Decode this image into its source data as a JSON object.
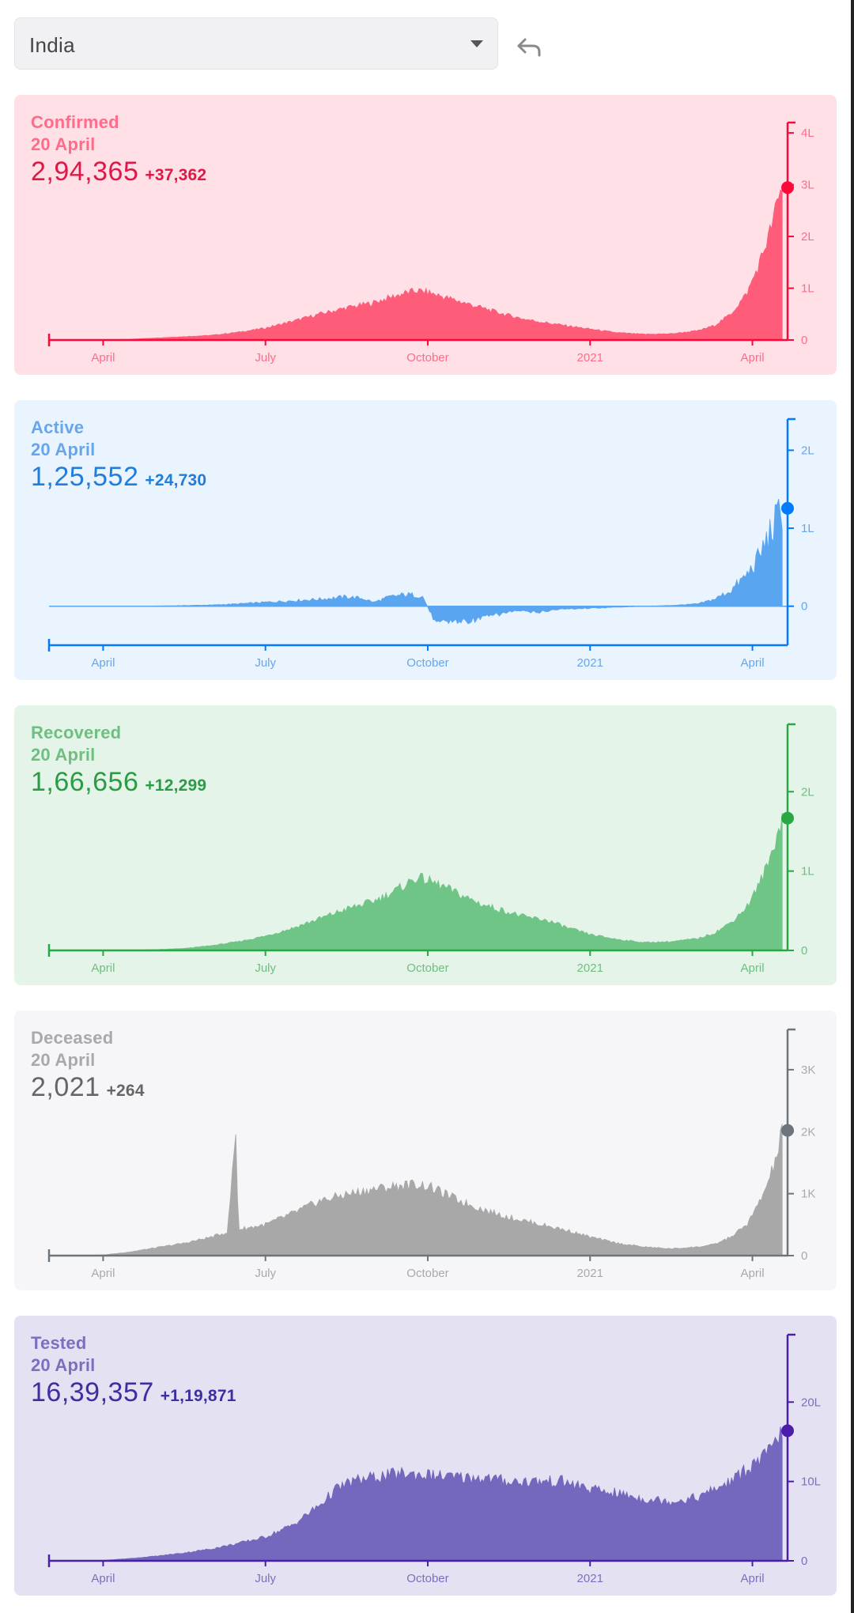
{
  "header": {
    "region_select": {
      "value": "India"
    },
    "undo_icon": "undo-arrow-icon"
  },
  "colors": {
    "confirmed": {
      "fg": "#ff073a",
      "bg": "#ffe0e6",
      "fill": "#ff5c7a",
      "text": "#ff6c8a",
      "total": "#e01845"
    },
    "active": {
      "fg": "#007bff",
      "bg": "#eaf4ff",
      "fill": "#5aa5f0",
      "text": "#66a6ec",
      "total": "#1f7ddc"
    },
    "recovered": {
      "fg": "#28a745",
      "bg": "#e4f4e8",
      "fill": "#6fc586",
      "text": "#6ebf80",
      "total": "#2a9c46"
    },
    "deceased": {
      "fg": "#6c757d",
      "bg": "#f6f6f9",
      "fill": "#a8a8a8",
      "text": "#a9a9a9",
      "total": "#666666"
    },
    "tested": {
      "fg": "#4b1eaa",
      "bg": "#e4e2f2",
      "fill": "#7367be",
      "text": "#7a6fc0",
      "total": "#3d2fa0"
    }
  },
  "cards": [
    {
      "key": "confirmed",
      "label": "Confirmed",
      "date": "20 April",
      "total": "2,94,365",
      "delta": "+37,362"
    },
    {
      "key": "active",
      "label": "Active",
      "date": "20 April",
      "total": "1,25,552",
      "delta": "+24,730"
    },
    {
      "key": "recovered",
      "label": "Recovered",
      "date": "20 April",
      "total": "1,66,656",
      "delta": "+12,299"
    },
    {
      "key": "deceased",
      "label": "Deceased",
      "date": "20 April",
      "total": "2,021",
      "delta": "+264"
    },
    {
      "key": "tested",
      "label": "Tested",
      "date": "20 April",
      "total": "16,39,357",
      "delta": "+1,19,871"
    }
  ],
  "chart_data": [
    {
      "type": "area",
      "title": "Confirmed",
      "x_labels": [
        "April",
        "July",
        "October",
        "2021",
        "April"
      ],
      "x_label_months": [
        1,
        4,
        7,
        10,
        13
      ],
      "x_range_months": [
        0,
        13.65
      ],
      "y_ticks": [
        0,
        100000,
        200000,
        300000,
        400000
      ],
      "y_tick_labels": [
        "0",
        "1L",
        "2L",
        "3L",
        "4L"
      ],
      "ylim": [
        0,
        420000
      ],
      "latest": 294365,
      "series": [
        [
          0,
          0
        ],
        [
          0.8,
          0
        ],
        [
          1,
          200
        ],
        [
          1.5,
          1500
        ],
        [
          2,
          4000
        ],
        [
          2.5,
          6500
        ],
        [
          3,
          9000
        ],
        [
          3.5,
          15000
        ],
        [
          4,
          23000
        ],
        [
          4.5,
          36000
        ],
        [
          5,
          50000
        ],
        [
          5.5,
          62000
        ],
        [
          6,
          72000
        ],
        [
          6.3,
          82000
        ],
        [
          6.6,
          91000
        ],
        [
          6.8,
          95000
        ],
        [
          7,
          92000
        ],
        [
          7.3,
          83000
        ],
        [
          7.6,
          74000
        ],
        [
          8,
          62000
        ],
        [
          8.4,
          50000
        ],
        [
          8.8,
          40000
        ],
        [
          9.2,
          33000
        ],
        [
          9.6,
          27000
        ],
        [
          10,
          21000
        ],
        [
          10.5,
          14000
        ],
        [
          11,
          11000
        ],
        [
          11.5,
          12000
        ],
        [
          12,
          18000
        ],
        [
          12.3,
          28000
        ],
        [
          12.6,
          50000
        ],
        [
          12.9,
          90000
        ],
        [
          13.1,
          140000
        ],
        [
          13.3,
          200000
        ],
        [
          13.45,
          260000
        ],
        [
          13.55,
          294365
        ]
      ]
    },
    {
      "type": "area",
      "title": "Active",
      "x_labels": [
        "April",
        "July",
        "October",
        "2021",
        "April"
      ],
      "x_label_months": [
        1,
        4,
        7,
        10,
        13
      ],
      "x_range_months": [
        0,
        13.65
      ],
      "y_ticks": [
        0,
        100000,
        200000
      ],
      "y_tick_labels": [
        "0",
        "1L",
        "2L"
      ],
      "ylim": [
        -50000,
        240000
      ],
      "latest": 125552,
      "series": [
        [
          0,
          0
        ],
        [
          2,
          300
        ],
        [
          3,
          1500
        ],
        [
          3.5,
          3000
        ],
        [
          4,
          5000
        ],
        [
          4.5,
          7000
        ],
        [
          5,
          9000
        ],
        [
          5.5,
          12000
        ],
        [
          5.8,
          10000
        ],
        [
          6,
          5000
        ],
        [
          6.3,
          12000
        ],
        [
          6.6,
          15000
        ],
        [
          6.9,
          13000
        ],
        [
          7.1,
          -15000
        ],
        [
          7.4,
          -20000
        ],
        [
          7.8,
          -18000
        ],
        [
          8.2,
          -12000
        ],
        [
          8.6,
          -6000
        ],
        [
          9,
          -8000
        ],
        [
          9.4,
          -4000
        ],
        [
          9.8,
          -3000
        ],
        [
          10.2,
          -2000
        ],
        [
          10.6,
          -1000
        ],
        [
          11,
          0
        ],
        [
          11.5,
          1000
        ],
        [
          12,
          3000
        ],
        [
          12.3,
          9000
        ],
        [
          12.6,
          20000
        ],
        [
          12.9,
          40000
        ],
        [
          13.1,
          60000
        ],
        [
          13.3,
          90000
        ],
        [
          13.45,
          110000
        ],
        [
          13.55,
          125552
        ]
      ]
    },
    {
      "type": "area",
      "title": "Recovered",
      "x_labels": [
        "April",
        "July",
        "October",
        "2021",
        "April"
      ],
      "x_label_months": [
        1,
        4,
        7,
        10,
        13
      ],
      "x_range_months": [
        0,
        13.65
      ],
      "y_ticks": [
        0,
        100000,
        200000
      ],
      "y_tick_labels": [
        "0",
        "1L",
        "2L"
      ],
      "ylim": [
        0,
        285000
      ],
      "latest": 166656,
      "series": [
        [
          0,
          0
        ],
        [
          1.5,
          300
        ],
        [
          2,
          1000
        ],
        [
          2.5,
          2500
        ],
        [
          3,
          6000
        ],
        [
          3.5,
          11000
        ],
        [
          4,
          18000
        ],
        [
          4.5,
          28000
        ],
        [
          5,
          40000
        ],
        [
          5.5,
          52000
        ],
        [
          6,
          62000
        ],
        [
          6.4,
          75000
        ],
        [
          6.8,
          92000
        ],
        [
          7,
          88000
        ],
        [
          7.3,
          80000
        ],
        [
          7.6,
          70000
        ],
        [
          8,
          58000
        ],
        [
          8.4,
          50000
        ],
        [
          8.8,
          42000
        ],
        [
          9.2,
          38000
        ],
        [
          9.6,
          28000
        ],
        [
          10,
          20000
        ],
        [
          10.5,
          14000
        ],
        [
          11,
          10000
        ],
        [
          11.5,
          11000
        ],
        [
          12,
          15000
        ],
        [
          12.3,
          22000
        ],
        [
          12.6,
          35000
        ],
        [
          12.9,
          55000
        ],
        [
          13.1,
          80000
        ],
        [
          13.3,
          110000
        ],
        [
          13.45,
          145000
        ],
        [
          13.55,
          166656
        ]
      ]
    },
    {
      "type": "area",
      "title": "Deceased",
      "x_labels": [
        "April",
        "July",
        "October",
        "2021",
        "April"
      ],
      "x_label_months": [
        1,
        4,
        7,
        10,
        13
      ],
      "x_range_months": [
        0,
        13.65
      ],
      "y_ticks": [
        0,
        1000,
        2000,
        3000
      ],
      "y_tick_labels": [
        "0",
        "1K",
        "2K",
        "3K"
      ],
      "ylim": [
        0,
        3650
      ],
      "latest": 2021,
      "series": [
        [
          0,
          0
        ],
        [
          1,
          10
        ],
        [
          1.5,
          60
        ],
        [
          2,
          130
        ],
        [
          2.5,
          200
        ],
        [
          3,
          300
        ],
        [
          3.3,
          380
        ],
        [
          3.45,
          2000
        ],
        [
          3.5,
          420
        ],
        [
          4,
          500
        ],
        [
          4.5,
          680
        ],
        [
          5,
          880
        ],
        [
          5.5,
          990
        ],
        [
          6,
          1070
        ],
        [
          6.5,
          1130
        ],
        [
          6.8,
          1150
        ],
        [
          7,
          1120
        ],
        [
          7.3,
          1000
        ],
        [
          7.6,
          880
        ],
        [
          8,
          750
        ],
        [
          8.4,
          640
        ],
        [
          8.8,
          560
        ],
        [
          9.2,
          480
        ],
        [
          9.6,
          400
        ],
        [
          10,
          300
        ],
        [
          10.5,
          200
        ],
        [
          11,
          140
        ],
        [
          11.5,
          110
        ],
        [
          12,
          140
        ],
        [
          12.3,
          180
        ],
        [
          12.6,
          300
        ],
        [
          12.9,
          500
        ],
        [
          13.1,
          800
        ],
        [
          13.3,
          1200
        ],
        [
          13.45,
          1600
        ],
        [
          13.55,
          2021
        ]
      ]
    },
    {
      "type": "area",
      "title": "Tested",
      "x_labels": [
        "April",
        "July",
        "October",
        "2021",
        "April"
      ],
      "x_label_months": [
        1,
        4,
        7,
        10,
        13
      ],
      "x_range_months": [
        0,
        13.65
      ],
      "y_ticks": [
        0,
        1000000,
        2000000
      ],
      "y_tick_labels": [
        "0",
        "10L",
        "20L"
      ],
      "ylim": [
        0,
        2850000
      ],
      "latest": 1639357,
      "series": [
        [
          0,
          0
        ],
        [
          1,
          5000
        ],
        [
          1.5,
          30000
        ],
        [
          2,
          60000
        ],
        [
          2.5,
          100000
        ],
        [
          3,
          150000
        ],
        [
          3.5,
          220000
        ],
        [
          4,
          300000
        ],
        [
          4.5,
          450000
        ],
        [
          5,
          700000
        ],
        [
          5.3,
          900000
        ],
        [
          5.6,
          1000000
        ],
        [
          6,
          1050000
        ],
        [
          6.5,
          1100000
        ],
        [
          7,
          1080000
        ],
        [
          7.5,
          1050000
        ],
        [
          8,
          1050000
        ],
        [
          8.5,
          1000000
        ],
        [
          9,
          1000000
        ],
        [
          9.5,
          1000000
        ],
        [
          10,
          900000
        ],
        [
          10.5,
          850000
        ],
        [
          11,
          780000
        ],
        [
          11.5,
          750000
        ],
        [
          12,
          800000
        ],
        [
          12.3,
          900000
        ],
        [
          12.6,
          1000000
        ],
        [
          12.9,
          1150000
        ],
        [
          13.2,
          1300000
        ],
        [
          13.4,
          1450000
        ],
        [
          13.55,
          1639357
        ]
      ]
    }
  ]
}
